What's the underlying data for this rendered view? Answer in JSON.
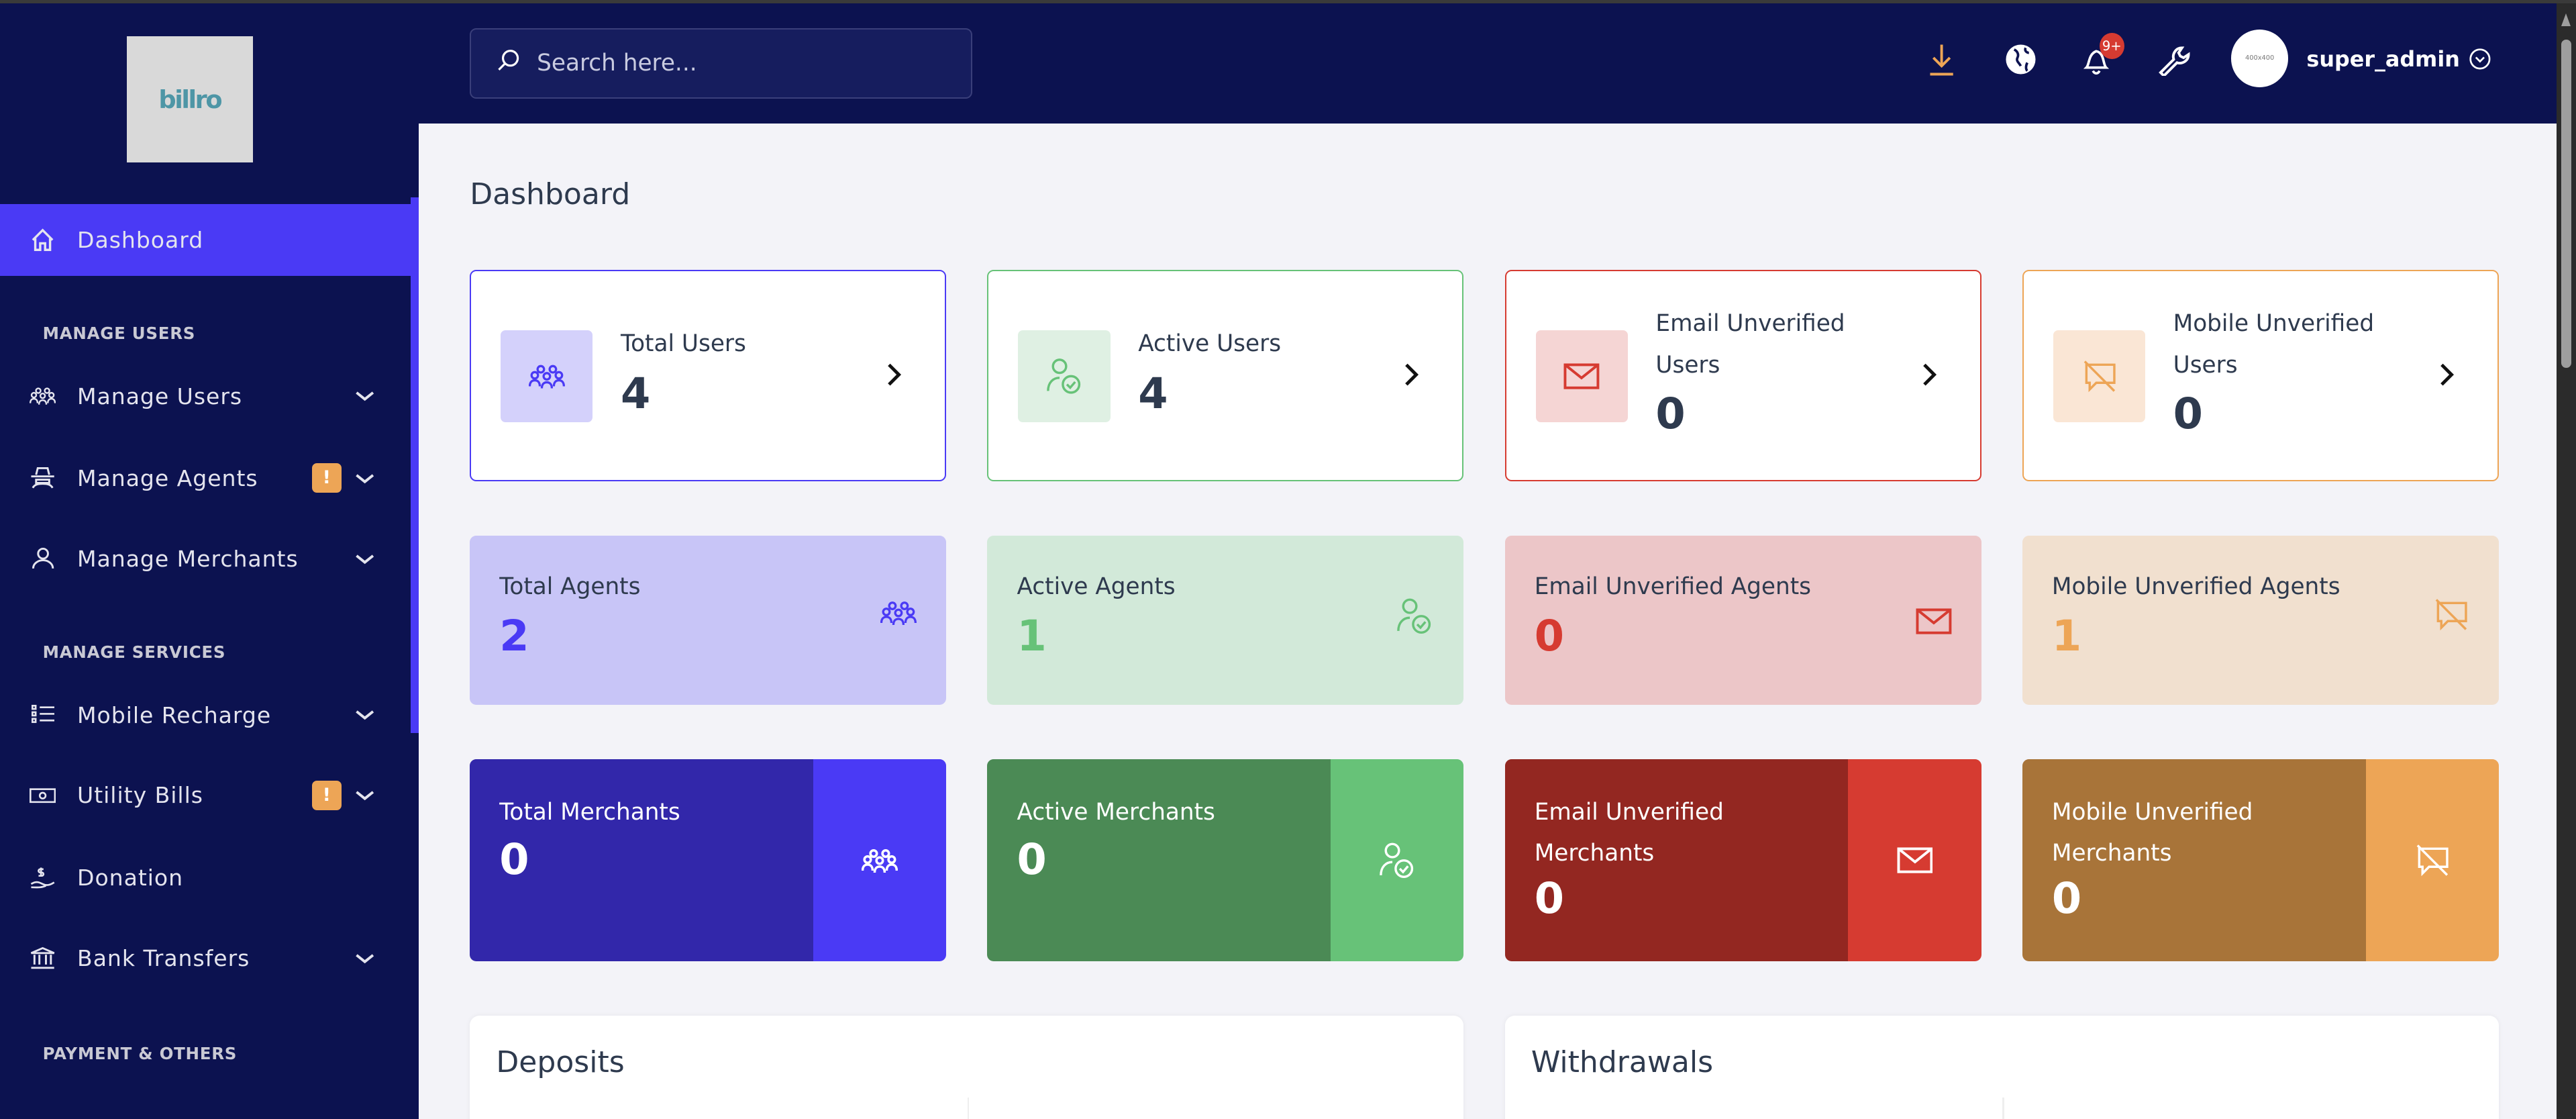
{
  "brand": {
    "logo_text": "billro"
  },
  "sidebar": {
    "items": [
      {
        "label": "Dashboard",
        "icon": "home-icon",
        "active": true
      },
      {
        "label": "Manage Users",
        "icon": "users-group-icon",
        "expandable": true
      },
      {
        "label": "Manage Agents",
        "icon": "agent-icon",
        "expandable": true,
        "badge": "!"
      },
      {
        "label": "Manage Merchants",
        "icon": "user-icon",
        "expandable": true
      },
      {
        "label": "Mobile Recharge",
        "icon": "list-icon",
        "expandable": true
      },
      {
        "label": "Utility Bills",
        "icon": "money-bill-icon",
        "expandable": true,
        "badge": "!"
      },
      {
        "label": "Donation",
        "icon": "hand-dollar-icon"
      },
      {
        "label": "Bank Transfers",
        "icon": "bank-icon",
        "expandable": true
      }
    ],
    "sections": [
      "MANAGE USERS",
      "MANAGE SERVICES",
      "PAYMENT & OTHERS"
    ]
  },
  "header": {
    "search_placeholder": "Search here...",
    "notification_count": "9+",
    "avatar_text": "400x400",
    "username": "super_admin",
    "download_color": "#eda556"
  },
  "page": {
    "title": "Dashboard"
  },
  "colors": {
    "purple": "#4a3af5",
    "green": "#67c278",
    "red": "#d63b31",
    "orange": "#eda556"
  },
  "user_cards": [
    {
      "label": "Total Users",
      "value": "4",
      "icon": "users-group-icon"
    },
    {
      "label": "Active Users",
      "value": "4",
      "icon": "user-check-icon"
    },
    {
      "label": "Email Unverified Users",
      "value": "0",
      "icon": "envelope-icon"
    },
    {
      "label": "Mobile Unverified Users",
      "value": "0",
      "icon": "mobile-off-icon"
    }
  ],
  "agent_cards": [
    {
      "label": "Total Agents",
      "value": "2"
    },
    {
      "label": "Active Agents",
      "value": "1"
    },
    {
      "label": "Email Unverified Agents",
      "value": "0"
    },
    {
      "label": "Mobile Unverified Agents",
      "value": "1"
    }
  ],
  "merchant_cards": [
    {
      "label": "Total Merchants",
      "value": "0"
    },
    {
      "label": "Active Merchants",
      "value": "0"
    },
    {
      "label": "Email Unverified Merchants",
      "value": "0"
    },
    {
      "label": "Mobile Unverified Merchants",
      "value": "0"
    }
  ],
  "panels": {
    "deposits": "Deposits",
    "withdrawals": "Withdrawals"
  }
}
